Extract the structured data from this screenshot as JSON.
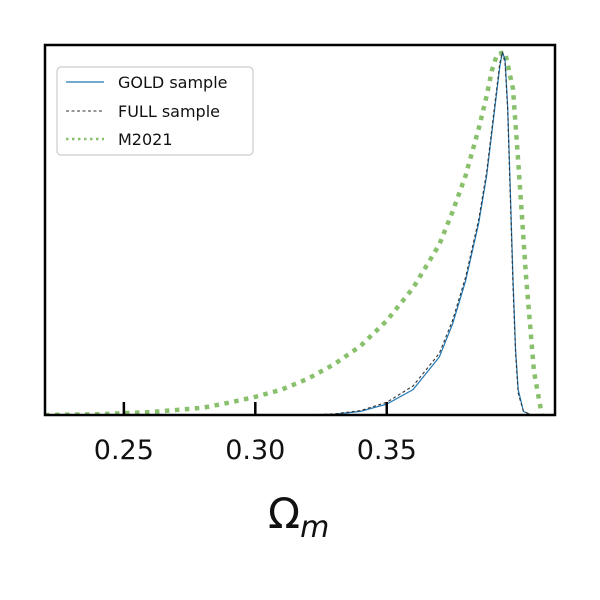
{
  "chart_data": {
    "type": "line",
    "title": "",
    "xlabel": "Ωm",
    "xlabel_main": "Ω",
    "xlabel_sub": "m",
    "ylabel": "",
    "xlim": [
      0.22,
      0.414
    ],
    "ylim": [
      0,
      1.02
    ],
    "xticks": [
      0.25,
      0.3,
      0.35
    ],
    "xtick_labels": [
      "0.25",
      "0.30",
      "0.35"
    ],
    "yticks": [],
    "grid": false,
    "legend": "top-left",
    "colors": {
      "gold": "#1f77b4",
      "full": "#333333",
      "m2021": "#88c06b",
      "axis": "#000000",
      "legend_border": "#cccccc"
    },
    "series": [
      {
        "name": "GOLD sample",
        "style": "solid",
        "x": [
          0.32,
          0.33,
          0.34,
          0.35,
          0.36,
          0.37,
          0.375,
          0.38,
          0.385,
          0.388,
          0.39,
          0.392,
          0.393,
          0.394,
          0.395,
          0.396,
          0.397,
          0.398,
          0.399,
          0.4,
          0.402,
          0.405
        ],
        "values": [
          0.0,
          0.002,
          0.01,
          0.03,
          0.07,
          0.16,
          0.25,
          0.37,
          0.53,
          0.66,
          0.78,
          0.9,
          0.96,
          1.0,
          0.98,
          0.85,
          0.62,
          0.38,
          0.18,
          0.07,
          0.01,
          0.0
        ]
      },
      {
        "name": "FULL sample",
        "style": "dotted-thin",
        "x": [
          0.32,
          0.33,
          0.34,
          0.35,
          0.36,
          0.37,
          0.375,
          0.38,
          0.385,
          0.388,
          0.39,
          0.392,
          0.393,
          0.394,
          0.395,
          0.396,
          0.397,
          0.398,
          0.399,
          0.4,
          0.402,
          0.405
        ],
        "values": [
          0.0,
          0.003,
          0.012,
          0.035,
          0.08,
          0.17,
          0.26,
          0.38,
          0.54,
          0.67,
          0.79,
          0.91,
          0.97,
          1.0,
          0.97,
          0.84,
          0.6,
          0.36,
          0.17,
          0.06,
          0.01,
          0.0
        ]
      },
      {
        "name": "M2021",
        "style": "dotted-thick",
        "x": [
          0.22,
          0.24,
          0.26,
          0.28,
          0.29,
          0.3,
          0.31,
          0.32,
          0.33,
          0.34,
          0.35,
          0.36,
          0.37,
          0.375,
          0.38,
          0.385,
          0.388,
          0.39,
          0.392,
          0.395,
          0.398,
          0.4,
          0.403,
          0.406,
          0.409
        ],
        "values": [
          0.0,
          0.002,
          0.008,
          0.02,
          0.034,
          0.05,
          0.07,
          0.1,
          0.14,
          0.19,
          0.26,
          0.35,
          0.47,
          0.56,
          0.66,
          0.79,
          0.88,
          0.95,
          0.995,
          1.0,
          0.9,
          0.7,
          0.38,
          0.12,
          0.0
        ]
      }
    ]
  }
}
